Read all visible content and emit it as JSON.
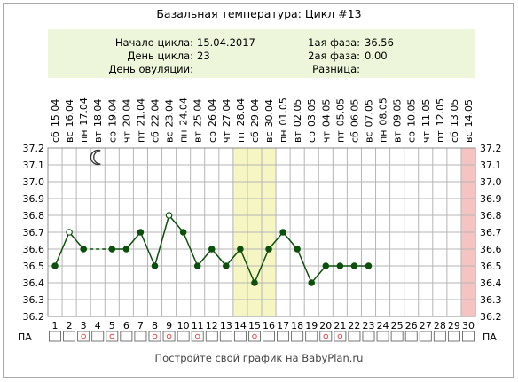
{
  "title": "Базальная температура: Цикл #13",
  "info": {
    "cycle_start_label": "Начало цикла:",
    "cycle_start_value": "15.04.2017",
    "cycle_day_label": "День цикла:",
    "cycle_day_value": "23",
    "ovulation_day_label": "День овуляции:",
    "ovulation_day_value": "",
    "phase1_label": "1ая фаза:",
    "phase1_value": "36.56",
    "phase2_label": "2ая фаза:",
    "phase2_value": "0.00",
    "diff_label": "Разница:",
    "diff_value": ""
  },
  "footer": "Постройте свой график на BabyPlan.ru",
  "colors": {
    "line": "#0d4f0d",
    "grid": "#b6b6b6",
    "highlight": "#f6f6c4",
    "menstruation": "#f6c3c3",
    "info_bg": "#edf6da"
  },
  "chart_data": {
    "type": "line",
    "x": [
      1,
      2,
      3,
      4,
      5,
      6,
      7,
      8,
      9,
      10,
      11,
      12,
      13,
      14,
      15,
      16,
      17,
      18,
      19,
      20,
      21,
      22,
      23,
      24,
      25,
      26,
      27,
      28,
      29,
      30
    ],
    "weekdays": [
      "сб",
      "вс",
      "пн",
      "вт",
      "ср",
      "чт",
      "пт",
      "сб",
      "вс",
      "пн",
      "вт",
      "ср",
      "чт",
      "пт",
      "сб",
      "вс",
      "пн",
      "вт",
      "ср",
      "чт",
      "пт",
      "сб",
      "вс",
      "пн",
      "вт",
      "ср",
      "чт",
      "пт",
      "сб",
      "вс"
    ],
    "dates": [
      "15.04",
      "16.04",
      "17.04",
      "18.04",
      "19.04",
      "20.04",
      "21.04",
      "22.04",
      "23.04",
      "24.04",
      "25.04",
      "26.04",
      "27.04",
      "28.04",
      "29.04",
      "30.04",
      "01.05",
      "02.05",
      "03.05",
      "04.05",
      "05.05",
      "06.05",
      "07.05",
      "08.05",
      "09.05",
      "10.05",
      "11.05",
      "12.05",
      "13.05",
      "14.05"
    ],
    "series": [
      {
        "values": [
          36.5,
          36.7,
          36.6,
          null,
          36.6,
          36.6,
          36.7,
          36.5,
          36.8,
          36.7,
          36.5,
          36.6,
          36.5,
          36.6,
          36.4,
          36.6,
          36.7,
          36.6,
          36.4,
          36.5,
          36.5,
          36.5,
          36.5,
          null,
          null,
          null,
          null,
          null,
          null,
          null
        ]
      }
    ],
    "hollow_points": [
      2,
      9
    ],
    "dashed_gap": [
      3,
      5
    ],
    "highlight_days": [
      14,
      16
    ],
    "pink_day": 30,
    "moon_day": 4,
    "ylim": [
      36.2,
      37.2
    ],
    "yticks": [
      "36.2",
      "36.3",
      "36.4",
      "36.5",
      "36.6",
      "36.7",
      "36.8",
      "36.9",
      "37.0",
      "37.1",
      "37.2"
    ],
    "pa_label": "ПА",
    "pa_marks": [
      3,
      5,
      8,
      9,
      11,
      15,
      20,
      21
    ],
    "grid": true
  }
}
